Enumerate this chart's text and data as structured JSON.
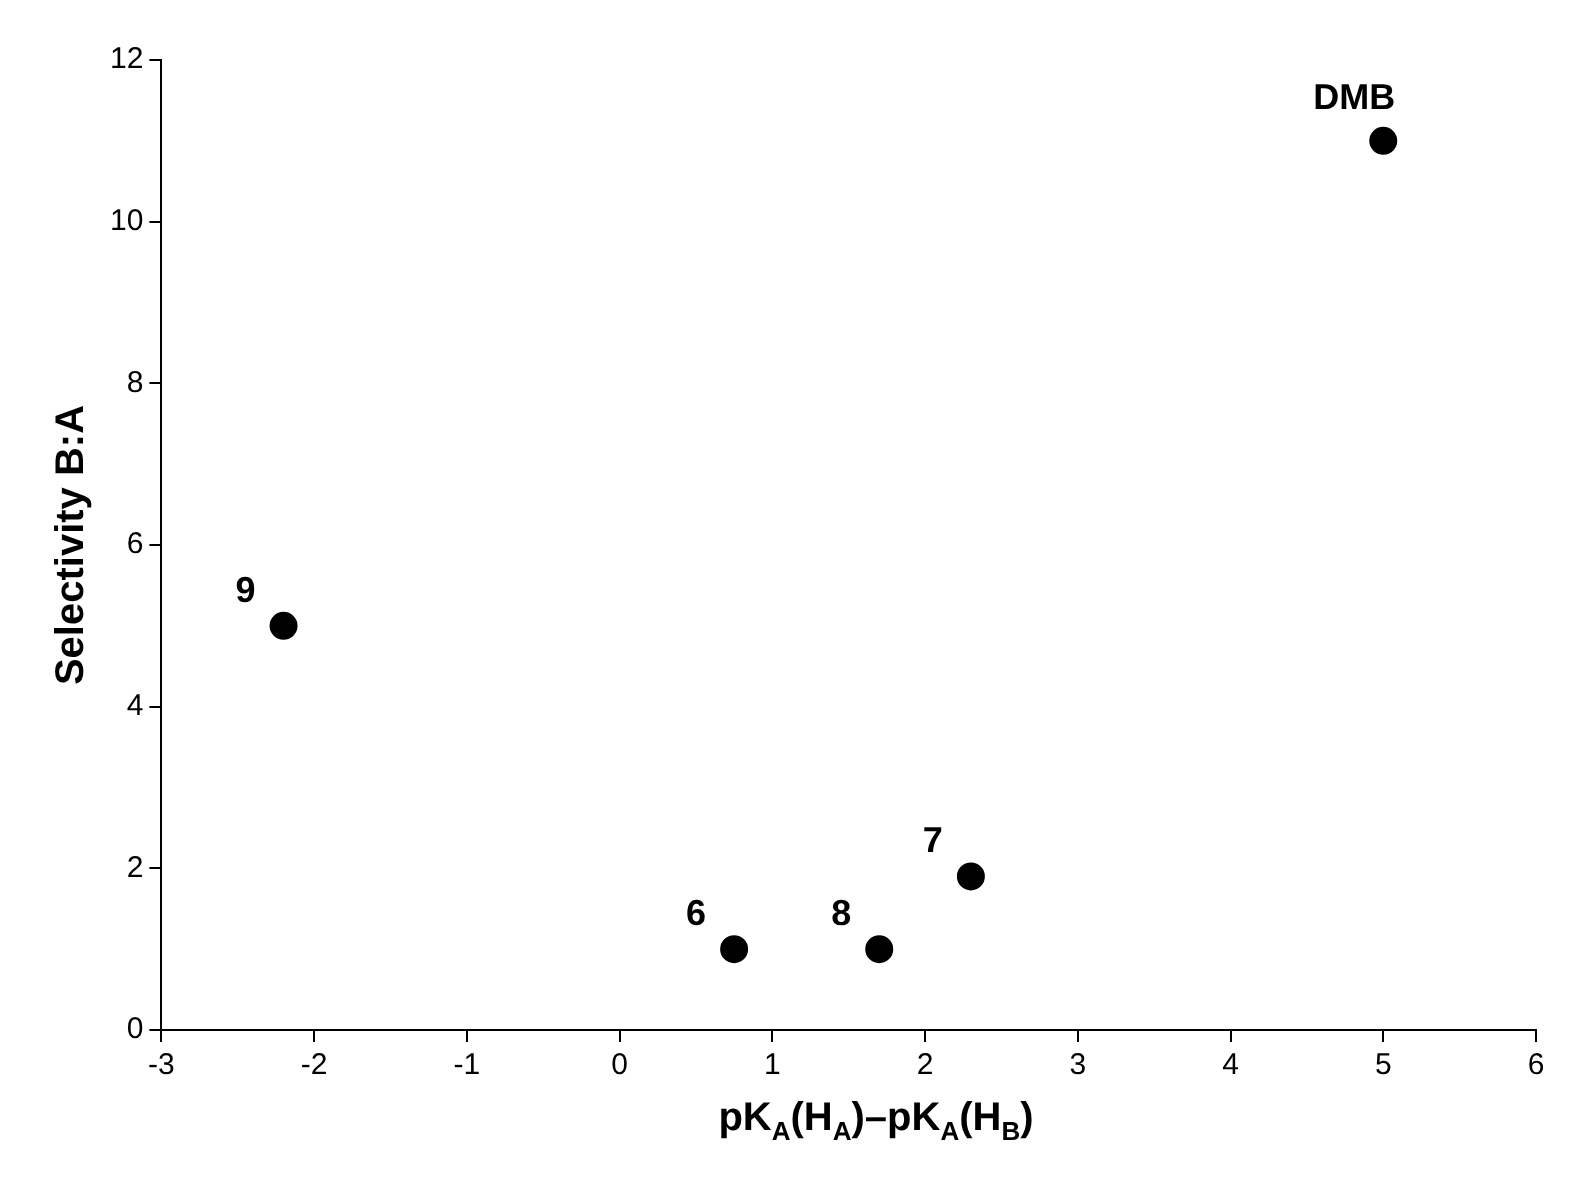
{
  "chart_data": {
    "type": "scatter",
    "xlabel": "pK$_{A}$(H$_{A}$)–pK$_{A}$(H$_{B}$)",
    "ylabel": "Selectivity B:A",
    "marker": "circle",
    "legend": false,
    "grid": false,
    "x": [
      -2.2,
      0.75,
      1.7,
      2.3,
      5.0
    ],
    "series": [
      {
        "color": "#000000",
        "values": [
          5.0,
          1.0,
          1.0,
          1.9,
          11.0
        ]
      }
    ],
    "xlim": [
      -3,
      6
    ],
    "xticks": [
      -3,
      -2,
      -1,
      0,
      1,
      2,
      3,
      4,
      5,
      6
    ],
    "ylim": [
      0,
      12
    ],
    "yticks": [
      0,
      2,
      4,
      6,
      8,
      10,
      12
    ],
    "annotations": [
      {
        "text": "9",
        "x": -2.2,
        "y": 5.0
      },
      {
        "text": "6",
        "x": 0.75,
        "y": 1.0
      },
      {
        "text": "8",
        "x": 1.7,
        "y": 1.0
      },
      {
        "text": "7",
        "x": 2.3,
        "y": 1.9
      },
      {
        "text": "DMB",
        "x": 5.0,
        "y": 11.0
      }
    ]
  }
}
